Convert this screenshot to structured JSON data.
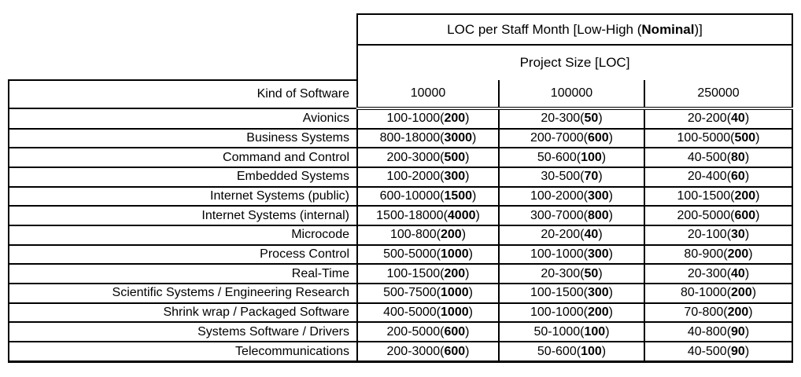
{
  "table": {
    "title": {
      "prefix": "LOC per Staff Month [Low-High (",
      "bold": "Nominal",
      "suffix": ")]"
    },
    "subtitle": "Project Size [LOC]",
    "row_header": "Kind of Software",
    "size_columns": [
      "10000",
      "100000",
      "250000"
    ],
    "format": {
      "open": "(",
      "close": ")"
    },
    "rows": [
      {
        "kind": "Avionics",
        "cells": [
          {
            "low_high": "100-1000",
            "nominal": "200"
          },
          {
            "low_high": "20-300",
            "nominal": "50"
          },
          {
            "low_high": "20-200",
            "nominal": "40"
          }
        ]
      },
      {
        "kind": "Business Systems",
        "cells": [
          {
            "low_high": "800-18000",
            "nominal": "3000"
          },
          {
            "low_high": "200-7000",
            "nominal": "600"
          },
          {
            "low_high": "100-5000",
            "nominal": "500"
          }
        ]
      },
      {
        "kind": "Command and Control",
        "cells": [
          {
            "low_high": "200-3000",
            "nominal": "500"
          },
          {
            "low_high": "50-600",
            "nominal": "100"
          },
          {
            "low_high": "40-500",
            "nominal": "80"
          }
        ]
      },
      {
        "kind": "Embedded Systems",
        "cells": [
          {
            "low_high": "100-2000",
            "nominal": "300"
          },
          {
            "low_high": "30-500",
            "nominal": "70"
          },
          {
            "low_high": "20-400",
            "nominal": "60"
          }
        ]
      },
      {
        "kind": "Internet Systems (public)",
        "cells": [
          {
            "low_high": "600-10000",
            "nominal": "1500"
          },
          {
            "low_high": "100-2000",
            "nominal": "300"
          },
          {
            "low_high": "100-1500",
            "nominal": "200"
          }
        ]
      },
      {
        "kind": "Internet Systems (internal)",
        "cells": [
          {
            "low_high": "1500-18000",
            "nominal": "4000"
          },
          {
            "low_high": "300-7000",
            "nominal": "800"
          },
          {
            "low_high": "200-5000",
            "nominal": "600"
          }
        ]
      },
      {
        "kind": "Microcode",
        "cells": [
          {
            "low_high": "100-800",
            "nominal": "200"
          },
          {
            "low_high": "20-200",
            "nominal": "40"
          },
          {
            "low_high": "20-100",
            "nominal": "30"
          }
        ]
      },
      {
        "kind": "Process Control",
        "cells": [
          {
            "low_high": "500-5000",
            "nominal": "1000"
          },
          {
            "low_high": "100-1000",
            "nominal": "300"
          },
          {
            "low_high": "80-900",
            "nominal": "200"
          }
        ]
      },
      {
        "kind": "Real-Time",
        "cells": [
          {
            "low_high": "100-1500",
            "nominal": "200"
          },
          {
            "low_high": "20-300",
            "nominal": "50"
          },
          {
            "low_high": "20-300",
            "nominal": "40"
          }
        ]
      },
      {
        "kind": "Scientific Systems / Engineering Research",
        "cells": [
          {
            "low_high": "500-7500",
            "nominal": "1000"
          },
          {
            "low_high": "100-1500",
            "nominal": "300"
          },
          {
            "low_high": "80-1000",
            "nominal": "200"
          }
        ]
      },
      {
        "kind": "Shrink wrap / Packaged Software",
        "cells": [
          {
            "low_high": "400-5000",
            "nominal": "1000"
          },
          {
            "low_high": "100-1000",
            "nominal": "200"
          },
          {
            "low_high": "70-800",
            "nominal": "200"
          }
        ]
      },
      {
        "kind": "Systems Software / Drivers",
        "cells": [
          {
            "low_high": "200-5000",
            "nominal": "600"
          },
          {
            "low_high": "50-1000",
            "nominal": "100"
          },
          {
            "low_high": "40-800",
            "nominal": "90"
          }
        ]
      },
      {
        "kind": "Telecommunications",
        "cells": [
          {
            "low_high": "200-3000",
            "nominal": "600"
          },
          {
            "low_high": "50-600",
            "nominal": "100"
          },
          {
            "low_high": "40-500",
            "nominal": "90"
          }
        ]
      }
    ]
  },
  "colors": {
    "border": "#000000",
    "text": "#000000",
    "background": "#ffffff"
  }
}
